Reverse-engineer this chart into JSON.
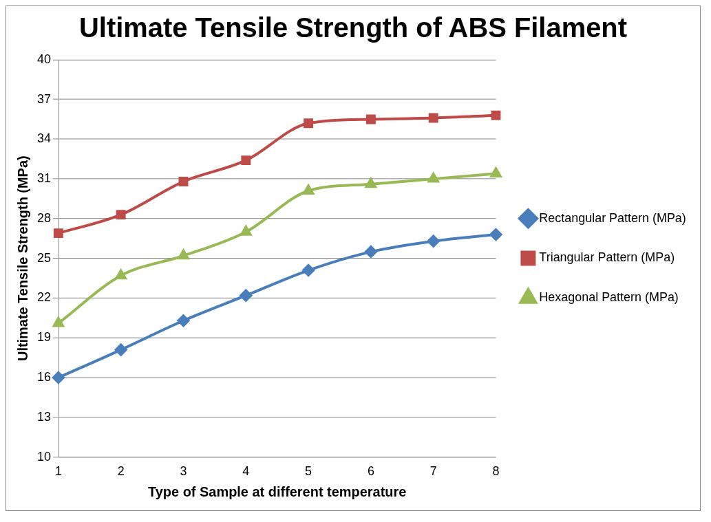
{
  "chart_data": {
    "type": "line",
    "title": "Ultimate Tensile Strength of ABS Filament",
    "xlabel": "Type of Sample at different temperature",
    "ylabel": "Ultimate Tensile Strength (MPa)",
    "categories": [
      "1",
      "2",
      "3",
      "4",
      "5",
      "6",
      "7",
      "8"
    ],
    "series": [
      {
        "name": "Rectangular Pattern (MPa)",
        "color": "#4a7ebb",
        "marker": "diamond",
        "values": [
          16.0,
          18.1,
          20.3,
          22.2,
          24.1,
          25.5,
          26.3,
          26.8
        ]
      },
      {
        "name": "Triangular Pattern (MPa)",
        "color": "#be4b48",
        "marker": "square",
        "values": [
          26.9,
          28.3,
          30.8,
          32.4,
          35.2,
          35.5,
          35.6,
          35.8
        ]
      },
      {
        "name": "Hexagonal Pattern (MPa)",
        "color": "#98b954",
        "marker": "triangle",
        "values": [
          20.1,
          23.7,
          25.2,
          27.0,
          30.1,
          30.6,
          31.0,
          31.4
        ]
      }
    ],
    "ylim": [
      10,
      40
    ],
    "yticks": [
      10,
      13,
      16,
      19,
      22,
      25,
      28,
      31,
      34,
      37,
      40
    ],
    "grid": "y",
    "legend": "right"
  }
}
